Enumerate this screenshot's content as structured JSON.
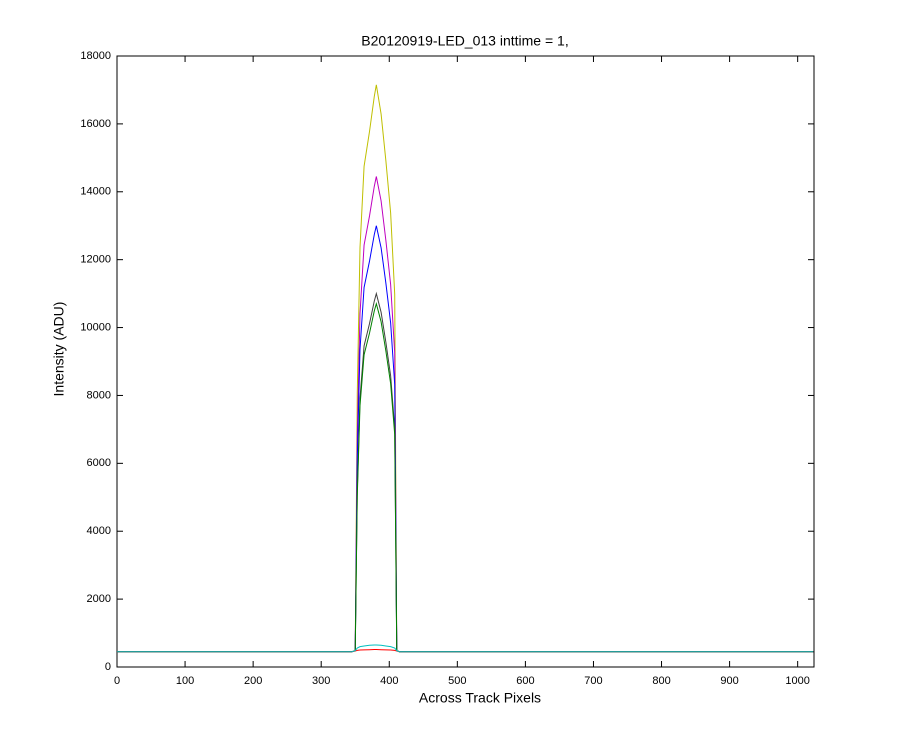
{
  "chart_data": {
    "type": "line",
    "title": "B20120919-LED_013 inttime = 1,",
    "x_label": "Across Track Pixels",
    "y_label": "Intensity (ADU)",
    "x": [
      0,
      345,
      350,
      353,
      357,
      363,
      371,
      378,
      381,
      388,
      395,
      402,
      408,
      411,
      415,
      1023
    ],
    "series": [
      {
        "color": "#bfbf00",
        "values": [
          450,
          450,
          480,
          8060,
          12350,
          14750,
          15780,
          16810,
          17150,
          16290,
          14920,
          13380,
          10980,
          480,
          450,
          450
        ]
      },
      {
        "color": "#bf00bf",
        "values": [
          450,
          450,
          480,
          6790,
          10400,
          12430,
          13290,
          14160,
          14450,
          13730,
          12570,
          11270,
          9250,
          480,
          450,
          450
        ]
      },
      {
        "color": "#0000ff",
        "values": [
          450,
          450,
          480,
          6110,
          9360,
          11180,
          11960,
          12740,
          13000,
          12350,
          11310,
          10140,
          8320,
          480,
          450,
          450
        ]
      },
      {
        "color": "#404040",
        "values": [
          450,
          450,
          480,
          5170,
          7920,
          9460,
          10120,
          10780,
          11000,
          10450,
          9570,
          8580,
          7040,
          480,
          450,
          450
        ]
      },
      {
        "color": "#008000",
        "values": [
          450,
          450,
          480,
          5030,
          7700,
          9200,
          9840,
          10490,
          10700,
          10170,
          9310,
          8350,
          6850,
          480,
          450,
          450
        ]
      },
      {
        "color": "#ff0000",
        "values": [
          450,
          450,
          470,
          490,
          500,
          505,
          510,
          515,
          515,
          510,
          505,
          500,
          490,
          470,
          450,
          450
        ]
      },
      {
        "color": "#00bfbf",
        "values": [
          450,
          450,
          480,
          560,
          600,
          620,
          640,
          650,
          650,
          640,
          620,
          600,
          560,
          480,
          450,
          450
        ]
      }
    ],
    "xlim": [
      0,
      1024
    ],
    "ylim": [
      0,
      18000
    ],
    "xticks": [
      0,
      100,
      200,
      300,
      400,
      500,
      600,
      700,
      800,
      900,
      1000
    ],
    "yticks": [
      0,
      2000,
      4000,
      6000,
      8000,
      10000,
      12000,
      14000,
      16000,
      18000
    ],
    "grid": false
  }
}
